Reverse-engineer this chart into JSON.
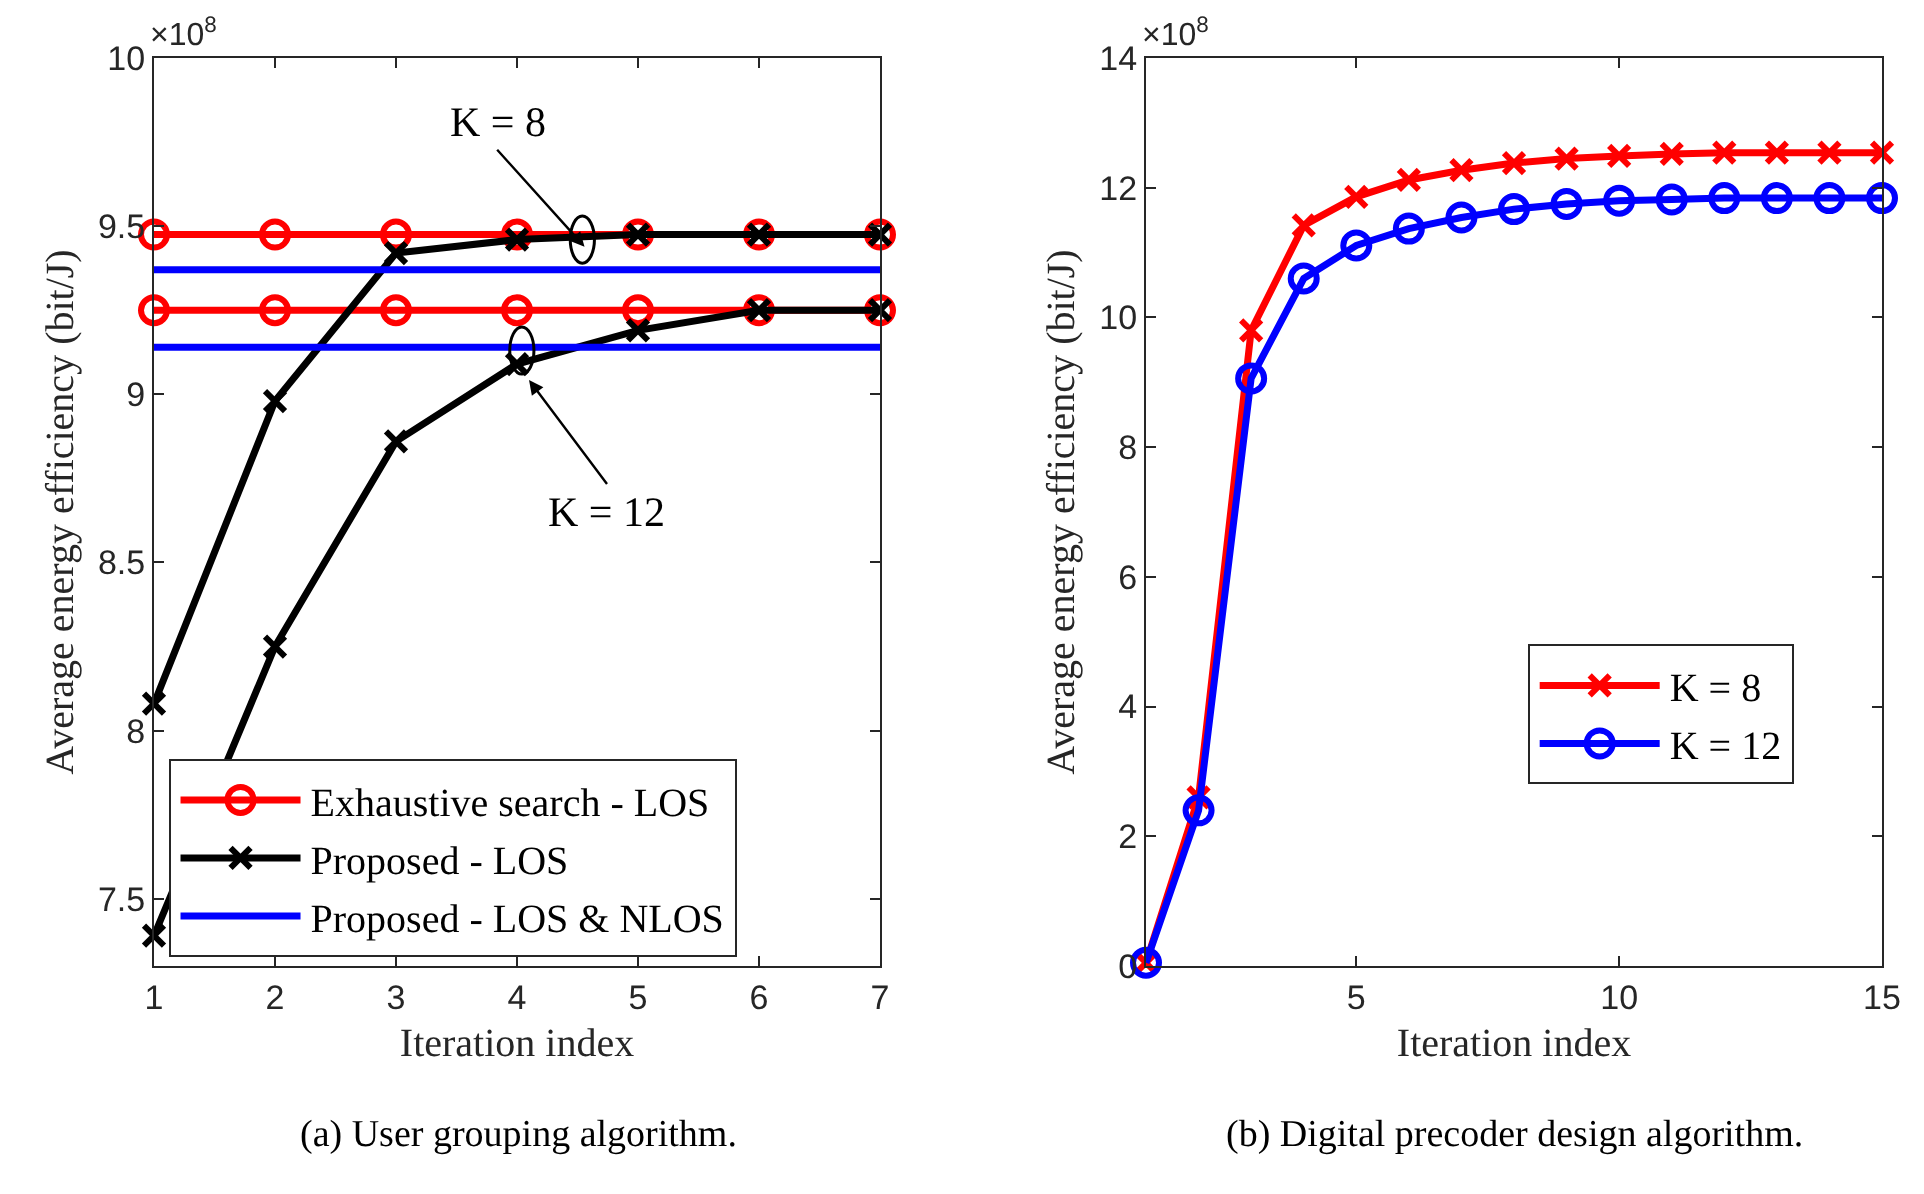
{
  "chart_data": [
    {
      "type": "line",
      "xlabel": "Iteration index",
      "ylabel": "Average energy efficiency (bit/J)",
      "x": [
        1,
        2,
        3,
        4,
        5,
        6,
        7
      ],
      "xlim": [
        1,
        7
      ],
      "xticks": [
        1,
        2,
        3,
        4,
        5,
        6,
        7
      ],
      "ylim": [
        7.3,
        10
      ],
      "yticks": [
        7.5,
        8,
        8.5,
        9,
        9.5,
        10
      ],
      "grid": false,
      "legend": "bottom left",
      "annotations": [
        "×10$^{8}$",
        "(a) User grouping algorithm.",
        {
          "text": "K = 8",
          "x": 4.58,
          "y": 9.43
        },
        {
          "text": "K = 12",
          "x": 4,
          "y": 9.09
        }
      ],
      "series": [
        {
          "name": "Exhaustive search - LOS",
          "color": "#ff0000",
          "marker": "circle",
          "values": [
            9.475,
            9.475,
            9.475,
            9.475,
            9.475,
            9.475,
            9.475
          ]
        },
        {
          "color": "#ff0000",
          "marker": "circle",
          "values": [
            9.25,
            9.25,
            9.25,
            9.25,
            9.25,
            9.25,
            9.25
          ]
        },
        {
          "name": "Proposed - LOS",
          "color": "#000000",
          "marker": "cross",
          "values": [
            8.08,
            8.98,
            9.42,
            9.46,
            9.475,
            9.475,
            9.475
          ]
        },
        {
          "color": "#000000",
          "marker": "cross",
          "values": [
            7.39,
            8.25,
            8.86,
            9.09,
            9.19,
            9.25,
            9.25
          ]
        },
        {
          "name": "Proposed - LOS & NLOS",
          "color": "#0000ff",
          "marker": "none",
          "values": [
            9.37,
            9.37,
            9.37,
            9.37,
            9.37,
            9.37,
            9.37
          ]
        },
        {
          "color": "#0000ff",
          "marker": "none",
          "values": [
            9.14,
            9.14,
            9.14,
            9.14,
            9.14,
            9.14,
            9.14
          ]
        }
      ]
    },
    {
      "type": "line",
      "xlabel": "Iteration index",
      "ylabel": "Average energy efficiency (bit/J)",
      "x": [
        1,
        2,
        3,
        4,
        5,
        6,
        7,
        8,
        9,
        10,
        11,
        12,
        13,
        14,
        15
      ],
      "xlim": [
        1,
        15
      ],
      "xticks": [
        5,
        10,
        15
      ],
      "ylim": [
        0,
        14
      ],
      "yticks": [
        0,
        2,
        4,
        6,
        8,
        10,
        12,
        14
      ],
      "grid": false,
      "legend": "right",
      "annotations": [
        "×10$^{8}$",
        "(b) Digital precoder design algorithm."
      ],
      "series": [
        {
          "name": "K = 8",
          "color": "#ff0000",
          "marker": "cross",
          "values": [
            0.05,
            2.6,
            9.8,
            11.42,
            11.86,
            12.12,
            12.27,
            12.38,
            12.45,
            12.49,
            12.52,
            12.54,
            12.54,
            12.54,
            12.54
          ]
        },
        {
          "name": "K = 12",
          "color": "#0000ff",
          "marker": "circle",
          "values": [
            0.05,
            2.4,
            9.06,
            10.6,
            11.11,
            11.37,
            11.54,
            11.67,
            11.75,
            11.8,
            11.82,
            11.84,
            11.84,
            11.84,
            11.84
          ]
        }
      ]
    }
  ]
}
